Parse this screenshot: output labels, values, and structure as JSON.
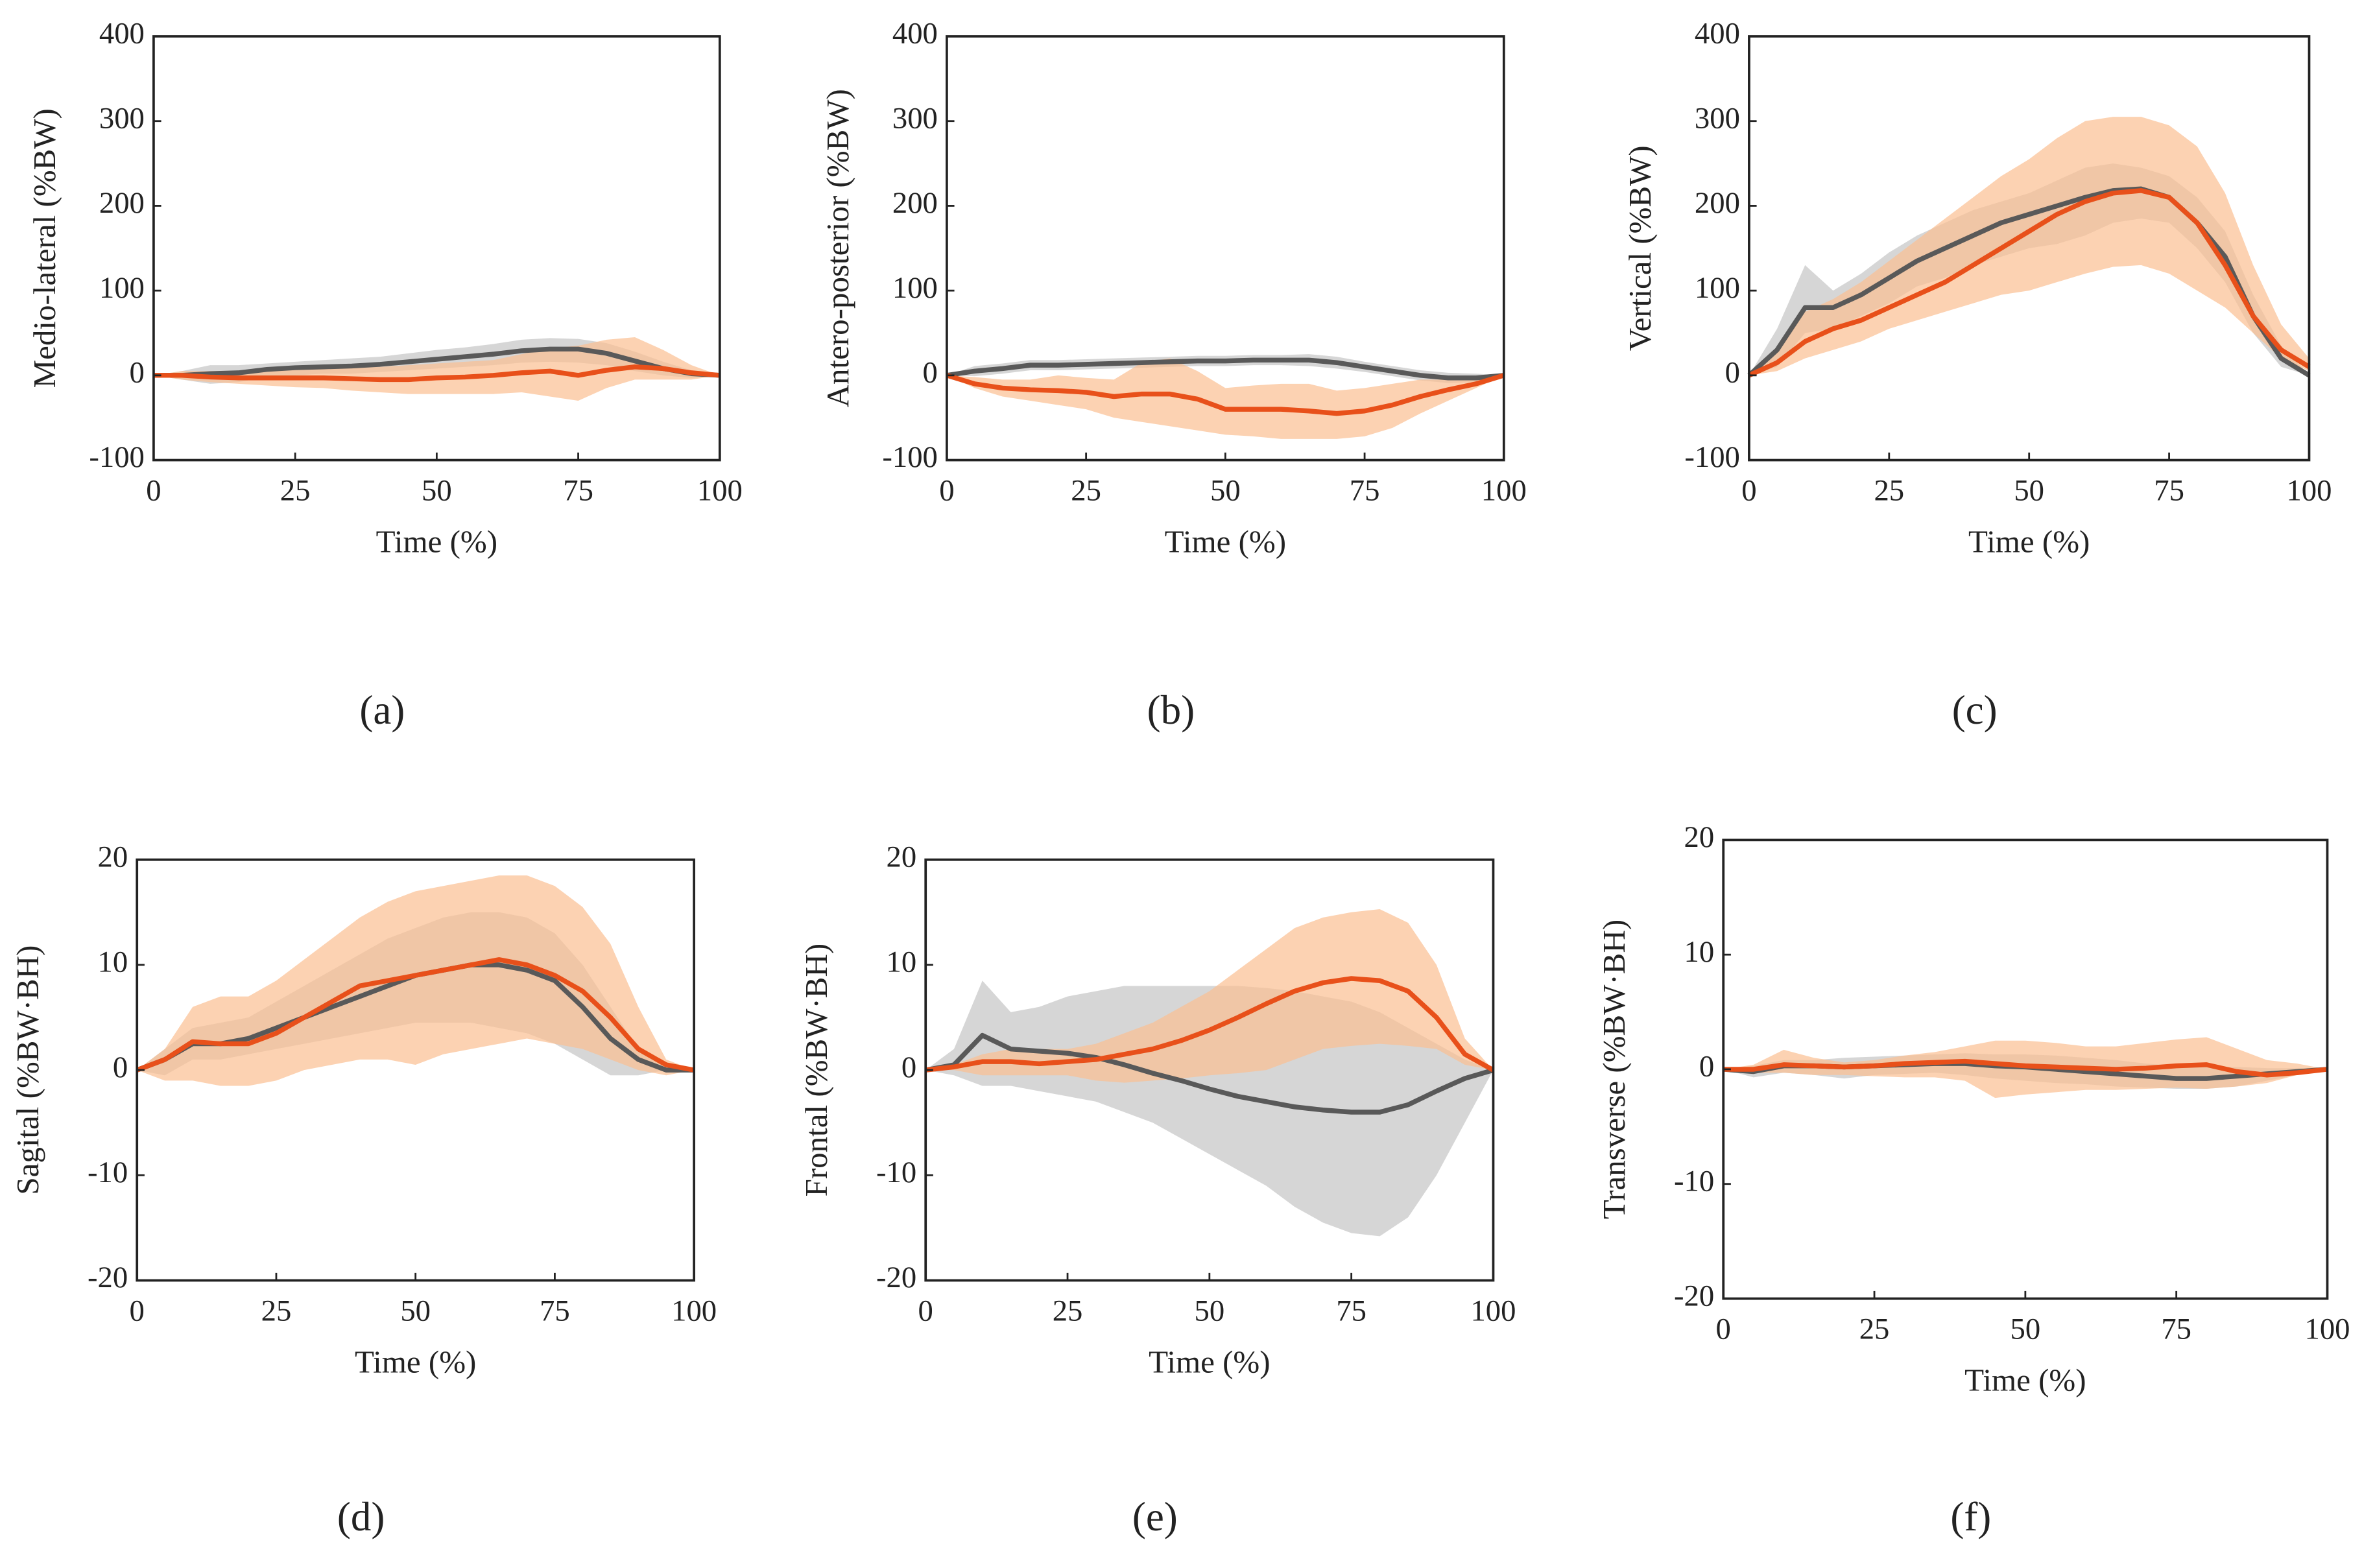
{
  "chart_data": [
    {
      "type": "line",
      "caption": "(a)",
      "x_label": "Time (%)",
      "y_label": "Medio-lateral  (%BW)",
      "x": [
        0,
        5,
        10,
        15,
        20,
        25,
        30,
        35,
        40,
        45,
        50,
        55,
        60,
        65,
        70,
        75,
        80,
        85,
        90,
        95,
        100
      ],
      "xlim": [
        0,
        100
      ],
      "xticks": [
        0,
        25,
        50,
        75,
        100
      ],
      "ylim": [
        -100,
        400
      ],
      "yticks": [
        -100,
        0,
        100,
        200,
        300,
        400
      ],
      "series": [
        {
          "color": "#595959",
          "band_color": "#c4c4c4",
          "values": [
            0,
            0,
            2,
            3,
            7,
            9,
            10,
            11,
            13,
            16,
            19,
            22,
            25,
            29,
            31,
            31,
            26,
            17,
            8,
            2,
            0
          ],
          "lower": [
            0,
            -5,
            -10,
            -8,
            -2,
            0,
            2,
            2,
            4,
            6,
            8,
            10,
            12,
            15,
            16,
            15,
            12,
            5,
            0,
            -3,
            0
          ],
          "upper": [
            0,
            5,
            12,
            12,
            14,
            16,
            18,
            20,
            22,
            26,
            30,
            33,
            37,
            42,
            44,
            43,
            38,
            28,
            16,
            6,
            0
          ]
        },
        {
          "color": "#e8501a",
          "band_color": "#fbbf91",
          "values": [
            0,
            0,
            -2,
            -3,
            -3,
            -3,
            -3,
            -4,
            -5,
            -5,
            -3,
            -2,
            0,
            3,
            5,
            0,
            6,
            10,
            8,
            3,
            0
          ],
          "lower": [
            0,
            -5,
            -8,
            -10,
            -12,
            -14,
            -15,
            -18,
            -20,
            -22,
            -22,
            -22,
            -22,
            -20,
            -25,
            -30,
            -15,
            -5,
            -5,
            -5,
            0
          ],
          "upper": [
            0,
            5,
            5,
            5,
            6,
            7,
            8,
            9,
            10,
            12,
            14,
            16,
            18,
            25,
            32,
            35,
            42,
            45,
            30,
            12,
            0
          ]
        }
      ]
    },
    {
      "type": "line",
      "caption": "(b)",
      "x_label": "Time (%)",
      "y_label": "Antero-posterior  (%BW)",
      "x": [
        0,
        5,
        10,
        15,
        20,
        25,
        30,
        35,
        40,
        45,
        50,
        55,
        60,
        65,
        70,
        75,
        80,
        85,
        90,
        95,
        100
      ],
      "xlim": [
        0,
        100
      ],
      "xticks": [
        0,
        25,
        50,
        75,
        100
      ],
      "ylim": [
        -100,
        400
      ],
      "yticks": [
        -100,
        0,
        100,
        200,
        300,
        400
      ],
      "series": [
        {
          "color": "#595959",
          "band_color": "#c4c4c4",
          "values": [
            0,
            5,
            8,
            12,
            12,
            13,
            14,
            15,
            16,
            17,
            17,
            18,
            18,
            18,
            15,
            10,
            5,
            0,
            -3,
            -3,
            0
          ],
          "lower": [
            0,
            -1,
            2,
            6,
            6,
            7,
            8,
            9,
            10,
            11,
            11,
            12,
            12,
            11,
            8,
            4,
            -1,
            -6,
            -9,
            -8,
            0
          ],
          "upper": [
            0,
            11,
            14,
            18,
            18,
            19,
            20,
            21,
            22,
            23,
            23,
            24,
            24,
            25,
            22,
            16,
            11,
            6,
            3,
            2,
            0
          ]
        },
        {
          "color": "#e8501a",
          "band_color": "#fbbf91",
          "values": [
            0,
            -10,
            -15,
            -17,
            -18,
            -20,
            -25,
            -22,
            -22,
            -28,
            -40,
            -40,
            -40,
            -42,
            -45,
            -42,
            -35,
            -25,
            -17,
            -10,
            0
          ],
          "lower": [
            0,
            -15,
            -25,
            -30,
            -35,
            -40,
            -50,
            -55,
            -60,
            -65,
            -70,
            -72,
            -75,
            -75,
            -75,
            -72,
            -62,
            -45,
            -30,
            -15,
            0
          ],
          "upper": [
            0,
            -2,
            -5,
            -5,
            0,
            -3,
            -5,
            15,
            20,
            5,
            -15,
            -12,
            -10,
            -10,
            -18,
            -15,
            -10,
            -5,
            -5,
            -3,
            0
          ]
        }
      ]
    },
    {
      "type": "line",
      "caption": "(c)",
      "x_label": "Time (%)",
      "y_label": "Vertical  (%BW)",
      "x": [
        0,
        5,
        10,
        15,
        20,
        25,
        30,
        35,
        40,
        45,
        50,
        55,
        60,
        65,
        70,
        75,
        80,
        85,
        90,
        95,
        100
      ],
      "xlim": [
        0,
        100
      ],
      "xticks": [
        0,
        25,
        50,
        75,
        100
      ],
      "ylim": [
        -100,
        400
      ],
      "yticks": [
        -100,
        0,
        100,
        200,
        300,
        400
      ],
      "series": [
        {
          "color": "#595959",
          "band_color": "#c4c4c4",
          "values": [
            0,
            30,
            80,
            80,
            95,
            115,
            135,
            150,
            165,
            180,
            190,
            200,
            210,
            218,
            220,
            210,
            180,
            140,
            70,
            20,
            0
          ],
          "lower": [
            0,
            10,
            50,
            55,
            70,
            85,
            105,
            115,
            130,
            140,
            150,
            155,
            165,
            180,
            185,
            180,
            150,
            110,
            50,
            10,
            0
          ],
          "upper": [
            0,
            55,
            130,
            100,
            120,
            145,
            165,
            180,
            195,
            205,
            215,
            230,
            245,
            250,
            245,
            235,
            210,
            170,
            95,
            35,
            0
          ]
        },
        {
          "color": "#e8501a",
          "band_color": "#fbbf91",
          "values": [
            0,
            15,
            40,
            55,
            65,
            80,
            95,
            110,
            130,
            150,
            170,
            190,
            205,
            215,
            218,
            210,
            180,
            130,
            70,
            30,
            10
          ],
          "lower": [
            0,
            5,
            20,
            30,
            40,
            55,
            65,
            75,
            85,
            95,
            100,
            110,
            120,
            128,
            130,
            120,
            100,
            80,
            50,
            20,
            5
          ],
          "upper": [
            0,
            30,
            75,
            90,
            110,
            135,
            160,
            185,
            210,
            235,
            255,
            280,
            300,
            305,
            305,
            295,
            270,
            215,
            130,
            60,
            20
          ]
        }
      ]
    },
    {
      "type": "line",
      "caption": "(d)",
      "x_label": "Time (%)",
      "y_label": "Sagital  (%BW·BH)",
      "x": [
        0,
        5,
        10,
        15,
        20,
        25,
        30,
        35,
        40,
        45,
        50,
        55,
        60,
        65,
        70,
        75,
        80,
        85,
        90,
        95,
        100
      ],
      "xlim": [
        0,
        100
      ],
      "xticks": [
        0,
        25,
        50,
        75,
        100
      ],
      "ylim": [
        -20,
        20
      ],
      "yticks": [
        -20,
        -10,
        0,
        10,
        20
      ],
      "series": [
        {
          "color": "#595959",
          "band_color": "#c4c4c4",
          "values": [
            0,
            1,
            2.5,
            2.5,
            3,
            4,
            5,
            6,
            7,
            8,
            9,
            9.5,
            10,
            10,
            9.5,
            8.5,
            6,
            3,
            1,
            0,
            0
          ],
          "lower": [
            0,
            -0.5,
            1,
            1,
            1.5,
            2,
            2.5,
            3,
            3.5,
            4,
            4.5,
            4.5,
            4.5,
            4,
            3.5,
            2.5,
            1,
            -0.5,
            -0.5,
            0,
            0
          ],
          "upper": [
            0,
            2,
            4,
            4.5,
            5,
            6.5,
            8,
            9.5,
            11,
            12.5,
            13.5,
            14.5,
            15,
            15,
            14.5,
            13,
            10,
            6,
            2,
            0.5,
            0
          ]
        },
        {
          "color": "#e8501a",
          "band_color": "#fbbf91",
          "values": [
            0,
            1,
            2.7,
            2.5,
            2.5,
            3.5,
            5,
            6.5,
            8,
            8.5,
            9,
            9.5,
            10,
            10.5,
            10,
            9,
            7.5,
            5,
            2,
            0.5,
            0
          ],
          "lower": [
            0,
            -1,
            -1,
            -1.5,
            -1.5,
            -1,
            0,
            0.5,
            1,
            1,
            0.5,
            1.5,
            2,
            2.5,
            3,
            2.5,
            2,
            1,
            0,
            -0.5,
            0
          ],
          "upper": [
            0,
            2,
            6,
            7,
            7,
            8.5,
            10.5,
            12.5,
            14.5,
            16,
            17,
            17.5,
            18,
            18.5,
            18.5,
            17.5,
            15.5,
            12,
            6,
            1,
            0
          ]
        }
      ]
    },
    {
      "type": "line",
      "caption": "(e)",
      "x_label": "Time (%)",
      "y_label": "Frontal  (%BW·BH)",
      "x": [
        0,
        5,
        10,
        15,
        20,
        25,
        30,
        35,
        40,
        45,
        50,
        55,
        60,
        65,
        70,
        75,
        80,
        85,
        90,
        95,
        100
      ],
      "xlim": [
        0,
        100
      ],
      "xticks": [
        0,
        25,
        50,
        75,
        100
      ],
      "ylim": [
        -20,
        20
      ],
      "yticks": [
        -20,
        -10,
        0,
        10,
        20
      ],
      "series": [
        {
          "color": "#595959",
          "band_color": "#c4c4c4",
          "values": [
            0,
            0.5,
            3.3,
            2,
            1.8,
            1.6,
            1.2,
            0.5,
            -0.3,
            -1,
            -1.8,
            -2.5,
            -3,
            -3.5,
            -3.8,
            -4,
            -4,
            -3.3,
            -2,
            -0.8,
            0
          ],
          "lower": [
            0,
            -0.5,
            -1.5,
            -1.5,
            -2,
            -2.5,
            -3,
            -4,
            -5,
            -6.5,
            -8,
            -9.5,
            -11,
            -13,
            -14.5,
            -15.5,
            -15.8,
            -14,
            -10,
            -5,
            0
          ],
          "upper": [
            0,
            2,
            8.5,
            5.5,
            6,
            7,
            7.5,
            8,
            8,
            8,
            8,
            8,
            7.8,
            7.5,
            7,
            6.5,
            5.5,
            4,
            2.5,
            1,
            0
          ]
        },
        {
          "color": "#e8501a",
          "band_color": "#fbbf91",
          "values": [
            0,
            0.3,
            0.8,
            0.8,
            0.6,
            0.8,
            1,
            1.5,
            2,
            2.8,
            3.8,
            5,
            6.3,
            7.5,
            8.3,
            8.7,
            8.5,
            7.5,
            5,
            1.5,
            0
          ],
          "lower": [
            0,
            0,
            -0.5,
            -0.5,
            -0.5,
            -0.5,
            -1,
            -1.2,
            -1,
            -0.8,
            -0.5,
            -0.3,
            0,
            1,
            2,
            2.3,
            2.5,
            2.3,
            2,
            0.5,
            0
          ],
          "upper": [
            0,
            0.5,
            1.5,
            2,
            2,
            2,
            2.5,
            3.5,
            4.5,
            6,
            7.5,
            9.5,
            11.5,
            13.5,
            14.5,
            15,
            15.3,
            14,
            10,
            3,
            0
          ]
        }
      ]
    },
    {
      "type": "line",
      "caption": "(f)",
      "x_label": "Time (%)",
      "y_label": "Transverse (%BW·BH)",
      "x": [
        0,
        5,
        10,
        15,
        20,
        25,
        30,
        35,
        40,
        45,
        50,
        55,
        60,
        65,
        70,
        75,
        80,
        85,
        90,
        95,
        100
      ],
      "xlim": [
        0,
        100
      ],
      "xticks": [
        0,
        25,
        50,
        75,
        100
      ],
      "ylim": [
        -20,
        20
      ],
      "yticks": [
        -20,
        -10,
        0,
        10,
        20
      ],
      "series": [
        {
          "color": "#595959",
          "band_color": "#c4c4c4",
          "values": [
            0,
            -0.2,
            0.3,
            0.3,
            0.2,
            0.3,
            0.4,
            0.5,
            0.5,
            0.3,
            0.2,
            0,
            -0.2,
            -0.4,
            -0.6,
            -0.8,
            -0.8,
            -0.6,
            -0.4,
            -0.2,
            0
          ],
          "lower": [
            0,
            -0.7,
            -0.3,
            -0.5,
            -0.8,
            -0.5,
            -0.4,
            -0.3,
            -0.5,
            -0.8,
            -1,
            -1.2,
            -1.3,
            -1.5,
            -1.6,
            -1.7,
            -1.7,
            -1.5,
            -1,
            -0.5,
            0
          ],
          "upper": [
            0,
            0.3,
            0.8,
            0.8,
            1,
            1.1,
            1.2,
            1.3,
            1.4,
            1.3,
            1.3,
            1.2,
            1,
            0.8,
            0.5,
            0.3,
            0.2,
            0.2,
            0.1,
            0.1,
            0
          ]
        },
        {
          "color": "#e8501a",
          "band_color": "#fbbf91",
          "values": [
            0,
            0,
            0.4,
            0.3,
            0.2,
            0.3,
            0.5,
            0.6,
            0.7,
            0.5,
            0.3,
            0.2,
            0.1,
            0,
            0.1,
            0.3,
            0.4,
            -0.2,
            -0.5,
            -0.3,
            0
          ],
          "lower": [
            0,
            -0.3,
            -0.3,
            -0.5,
            -0.5,
            -0.6,
            -0.7,
            -0.7,
            -1,
            -2.5,
            -2.2,
            -2,
            -1.8,
            -1.8,
            -1.7,
            -1.6,
            -1.7,
            -1.5,
            -1.2,
            -0.5,
            0
          ],
          "upper": [
            0,
            0.4,
            1.7,
            1,
            0.6,
            0.8,
            1.2,
            1.5,
            2,
            2.5,
            2.5,
            2.3,
            2,
            2,
            2.3,
            2.6,
            2.8,
            1.8,
            0.8,
            0.5,
            0
          ]
        }
      ]
    }
  ]
}
